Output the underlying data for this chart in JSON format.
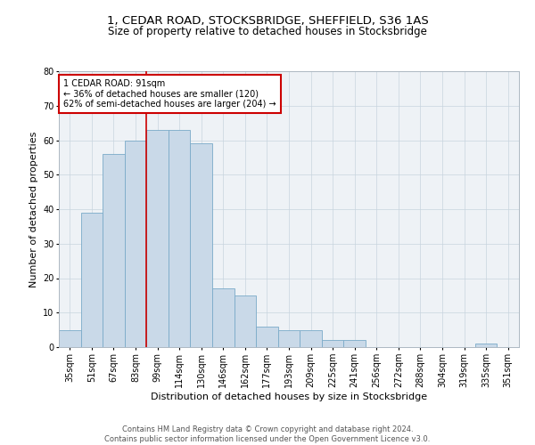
{
  "title": "1, CEDAR ROAD, STOCKSBRIDGE, SHEFFIELD, S36 1AS",
  "subtitle": "Size of property relative to detached houses in Stocksbridge",
  "xlabel": "Distribution of detached houses by size in Stocksbridge",
  "ylabel": "Number of detached properties",
  "footer_line1": "Contains HM Land Registry data © Crown copyright and database right 2024.",
  "footer_line2": "Contains public sector information licensed under the Open Government Licence v3.0.",
  "bin_labels": [
    "35sqm",
    "51sqm",
    "67sqm",
    "83sqm",
    "99sqm",
    "114sqm",
    "130sqm",
    "146sqm",
    "162sqm",
    "177sqm",
    "193sqm",
    "209sqm",
    "225sqm",
    "241sqm",
    "256sqm",
    "272sqm",
    "288sqm",
    "304sqm",
    "319sqm",
    "335sqm",
    "351sqm"
  ],
  "bar_heights": [
    5,
    39,
    56,
    60,
    63,
    63,
    59,
    17,
    15,
    6,
    5,
    5,
    2,
    2,
    0,
    0,
    0,
    0,
    0,
    1,
    0
  ],
  "bar_color": "#c9d9e8",
  "bar_edge_color": "#7aaac8",
  "vline_color": "#cc0000",
  "annotation_text": "1 CEDAR ROAD: 91sqm\n← 36% of detached houses are smaller (120)\n62% of semi-detached houses are larger (204) →",
  "annotation_box_color": "#cc0000",
  "ylim": [
    0,
    80
  ],
  "yticks": [
    0,
    10,
    20,
    30,
    40,
    50,
    60,
    70,
    80
  ],
  "grid_color": "#c8d4de",
  "bg_color": "#eef2f6",
  "title_fontsize": 9.5,
  "subtitle_fontsize": 8.5,
  "xlabel_fontsize": 8,
  "ylabel_fontsize": 8,
  "annot_fontsize": 7,
  "tick_fontsize": 7,
  "footer_fontsize": 6
}
